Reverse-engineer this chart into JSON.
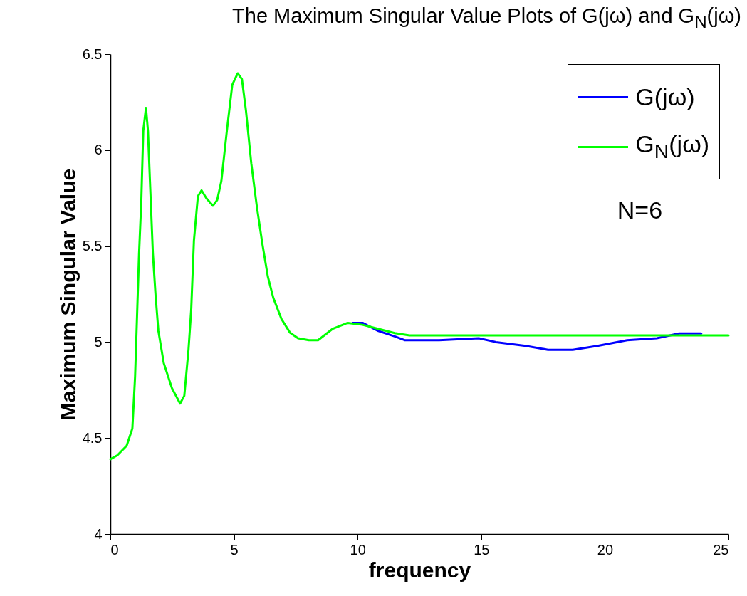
{
  "chart_data": {
    "type": "line",
    "title": "The Maximum Singular Value Plots of G(jω) and G$_{N}$(jω)",
    "xlabel": "frequency",
    "ylabel": "Maximum Singular Value",
    "xlim": [
      0,
      25
    ],
    "xticks": [
      0,
      5,
      10,
      15,
      20,
      25
    ],
    "ylim": [
      4,
      6.5
    ],
    "yticks": [
      4,
      4.5,
      5,
      5.5,
      6,
      6.5
    ],
    "grid": false,
    "legend": "top right",
    "marker": "none",
    "line_style": "solid",
    "annotations": [
      "N=6"
    ],
    "series": [
      {
        "name": "G(jω)",
        "color": "#0000ff",
        "x": [
          9.8,
          10.2,
          10.8,
          11.5,
          11.9,
          13.3,
          14.9,
          15.6,
          16.8,
          17.7,
          18.7,
          19.7,
          20.9,
          22.1,
          23.0,
          23.9
        ],
        "values": [
          5.1,
          5.1,
          5.06,
          5.03,
          5.01,
          5.01,
          5.02,
          5.0,
          4.98,
          4.96,
          4.96,
          4.98,
          5.01,
          5.02,
          5.045,
          5.045
        ]
      },
      {
        "name": "G$_{N}$(jω)",
        "color": "#00ff00",
        "x": [
          0,
          0.28,
          0.66,
          0.89,
          1.0,
          1.07,
          1.16,
          1.25,
          1.33,
          1.44,
          1.52,
          1.61,
          1.72,
          1.83,
          1.94,
          2.16,
          2.49,
          2.82,
          2.99,
          3.16,
          3.27,
          3.38,
          3.54,
          3.69,
          3.88,
          4.15,
          4.32,
          4.49,
          4.71,
          4.93,
          5.15,
          5.32,
          5.48,
          5.7,
          5.93,
          6.15,
          6.37,
          6.59,
          6.92,
          7.26,
          7.59,
          8.03,
          8.4,
          9.0,
          9.6,
          10.2,
          10.8,
          11.5,
          12.1,
          25
        ],
        "values": [
          4.39,
          4.41,
          4.46,
          4.55,
          4.82,
          5.1,
          5.46,
          5.73,
          6.1,
          6.22,
          6.1,
          5.81,
          5.46,
          5.24,
          5.06,
          4.89,
          4.76,
          4.68,
          4.72,
          4.96,
          5.17,
          5.53,
          5.76,
          5.79,
          5.75,
          5.71,
          5.74,
          5.84,
          6.1,
          6.34,
          6.4,
          6.37,
          6.21,
          5.93,
          5.7,
          5.51,
          5.34,
          5.23,
          5.12,
          5.05,
          5.02,
          5.01,
          5.01,
          5.07,
          5.1,
          5.09,
          5.07,
          5.047,
          5.035,
          5.035
        ]
      }
    ]
  }
}
